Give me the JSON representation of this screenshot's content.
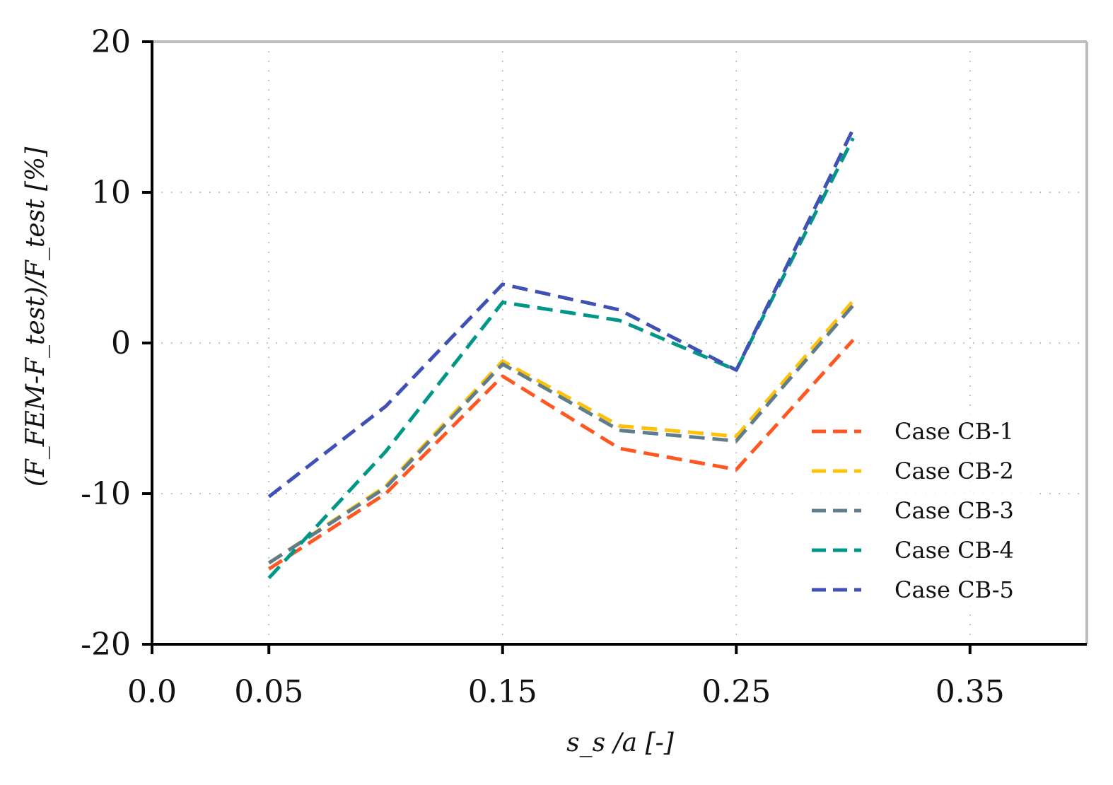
{
  "chart_data": {
    "type": "line",
    "title": "",
    "xlabel": "s_s /a [-]",
    "ylabel": "(F_FEM-F_test)/F_test [%]",
    "xlim": [
      0.0,
      0.4
    ],
    "ylim": [
      -20,
      20
    ],
    "xticks": [
      0.0,
      0.05,
      0.15,
      0.25,
      0.35
    ],
    "xtick_labels": [
      "0.0",
      "0.05",
      "0.15",
      "0.25",
      "0.35"
    ],
    "yticks": [
      -20,
      -10,
      0,
      10,
      20
    ],
    "ytick_labels": [
      "-20",
      "-10",
      "0",
      "10",
      "20"
    ],
    "grid": true,
    "legend_position": "lower-right",
    "x": [
      0.05,
      0.1,
      0.15,
      0.2,
      0.25,
      0.3
    ],
    "series": [
      {
        "name": "Case CB-1",
        "color": "#FF5722",
        "values": [
          -15.0,
          -10.0,
          -2.2,
          -7.0,
          -8.4,
          0.2
        ]
      },
      {
        "name": "Case CB-2",
        "color": "#FFC107",
        "values": [
          -14.6,
          -9.5,
          -1.2,
          -5.5,
          -6.2,
          2.8
        ]
      },
      {
        "name": "Case CB-3",
        "color": "#607D8B",
        "values": [
          -14.6,
          -9.6,
          -1.4,
          -5.8,
          -6.5,
          2.5
        ]
      },
      {
        "name": "Case CB-4",
        "color": "#009688",
        "values": [
          -15.6,
          -7.2,
          2.7,
          1.5,
          -1.8,
          13.6
        ]
      },
      {
        "name": "Case CB-5",
        "color": "#3F51B5",
        "values": [
          -10.2,
          -4.2,
          3.9,
          2.2,
          -1.8,
          14.2
        ]
      }
    ]
  }
}
